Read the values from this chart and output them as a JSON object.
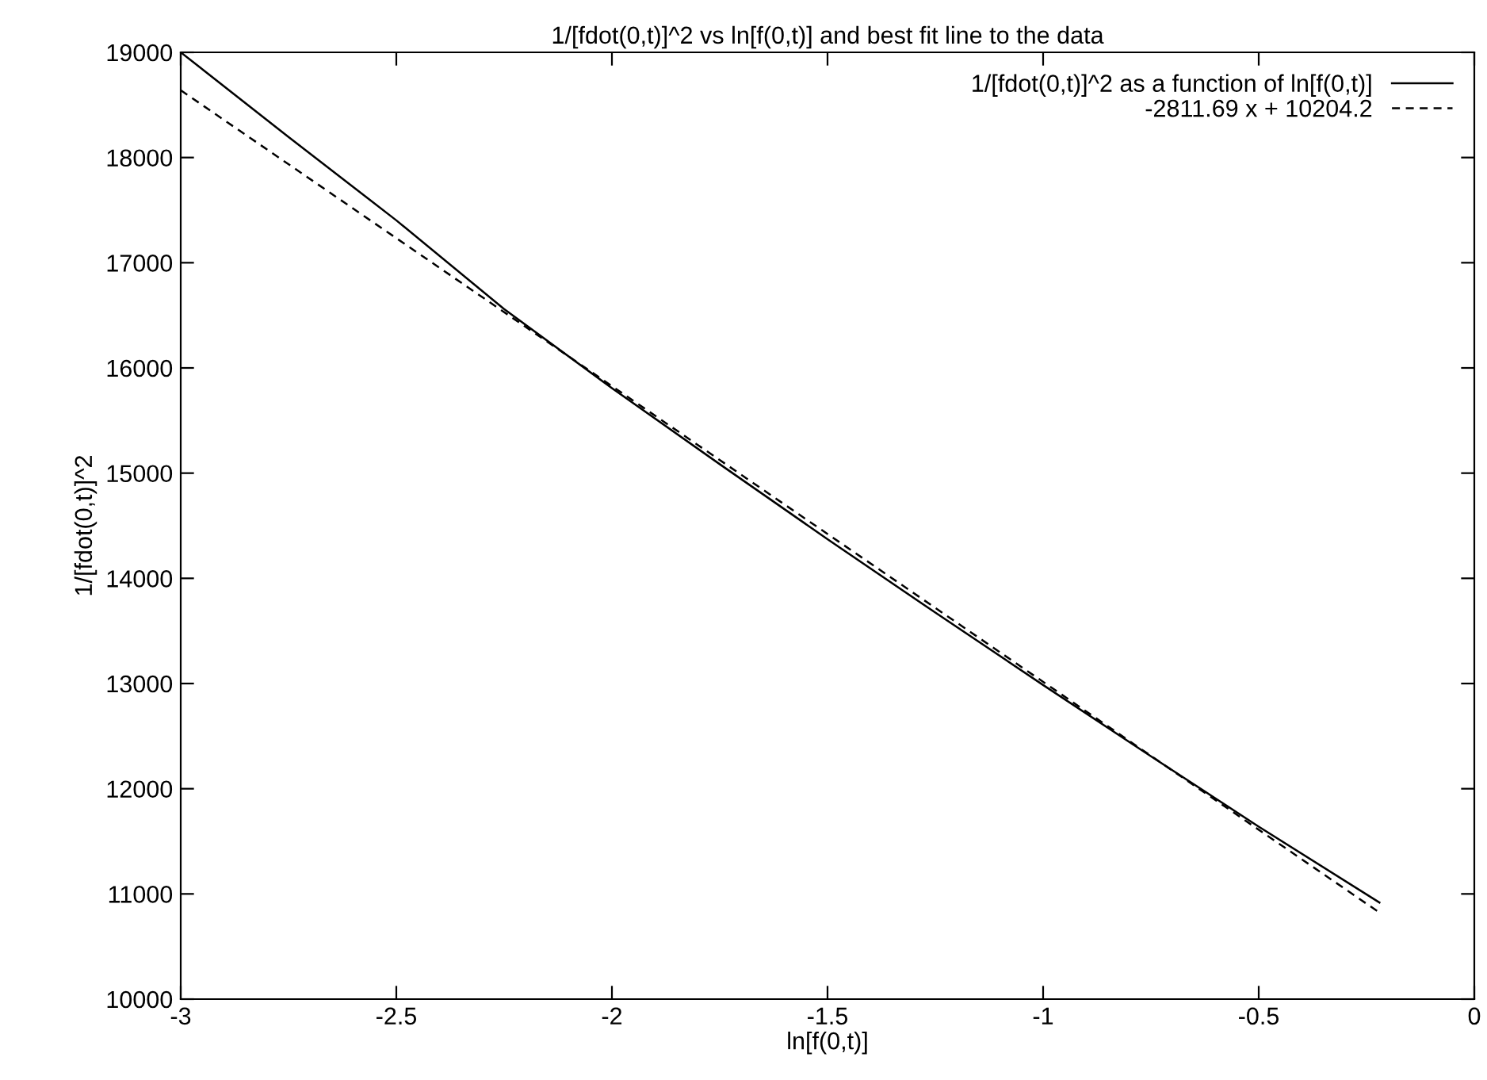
{
  "chart_data": {
    "type": "line",
    "title": "1/[fdot(0,t)]^2 vs ln[f(0,t)] and best fit line to the data",
    "xlabel": "ln[f(0,t)]",
    "ylabel": "1/[fdot(0,t)]^2",
    "series": [
      {
        "name": "1/[fdot(0,t)]^2 as a function of ln[f(0,t)]",
        "color": "#000000",
        "line_style": "solid",
        "x": [
          -3,
          -2.75,
          -2.5,
          -2.25,
          -2,
          -1.75,
          -1.5,
          -1.25,
          -1,
          -0.75,
          -0.5,
          -0.22
        ],
        "values": [
          19000,
          18196,
          17403,
          16560,
          15808,
          15085,
          14372,
          13674,
          12986,
          12308,
          11640,
          10918
        ]
      },
      {
        "name": "-2811.69 x + 10204.2",
        "color": "#000000",
        "line_style": "dashed",
        "x": [
          -3,
          -0.22
        ],
        "values": [
          18639.3,
          10822.8
        ]
      }
    ],
    "xlim": [
      -3,
      0
    ],
    "xticks": [
      -3,
      -2.5,
      -2,
      -1.5,
      -1,
      -0.5,
      0
    ],
    "ylim": [
      10000,
      19000
    ],
    "yticks": [
      10000,
      11000,
      12000,
      13000,
      14000,
      15000,
      16000,
      17000,
      18000,
      19000
    ],
    "grid": false,
    "legend": "top right",
    "marker": "none"
  }
}
